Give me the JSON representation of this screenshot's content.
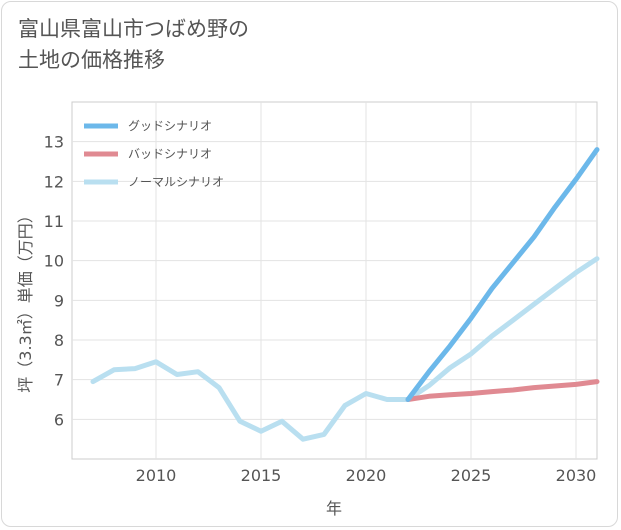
{
  "title_lines": [
    "富山県富山市つばめ野の",
    "土地の価格推移"
  ],
  "chart_data": {
    "type": "line",
    "xlabel": "年",
    "ylabel": "坪（3.3㎡）単価（万円）",
    "xlim": [
      2006,
      2031
    ],
    "ylim": [
      5,
      14
    ],
    "x_ticks": [
      2010,
      2015,
      2020,
      2025,
      2030
    ],
    "y_ticks": [
      6,
      7,
      8,
      9,
      10,
      11,
      12,
      13
    ],
    "grid": true,
    "legend_position": "top-left",
    "series": [
      {
        "name": "グッドシナリオ",
        "color": "#6cb8ea",
        "x": [
          2022,
          2023,
          2024,
          2025,
          2026,
          2027,
          2028,
          2029,
          2030,
          2031
        ],
        "y": [
          6.5,
          7.2,
          7.85,
          8.55,
          9.3,
          9.95,
          10.6,
          11.35,
          12.05,
          12.8
        ]
      },
      {
        "name": "バッドシナリオ",
        "color": "#e08a92",
        "x": [
          2022,
          2023,
          2024,
          2025,
          2026,
          2027,
          2028,
          2029,
          2030,
          2031
        ],
        "y": [
          6.5,
          6.58,
          6.62,
          6.65,
          6.7,
          6.74,
          6.8,
          6.84,
          6.88,
          6.95
        ]
      },
      {
        "name": "ノーマルシナリオ",
        "color": "#b9dff0",
        "x": [
          2007,
          2008,
          2009,
          2010,
          2011,
          2012,
          2013,
          2014,
          2015,
          2016,
          2017,
          2018,
          2019,
          2020,
          2021,
          2022,
          2023,
          2024,
          2025,
          2026,
          2027,
          2028,
          2029,
          2030,
          2031
        ],
        "y": [
          6.95,
          7.25,
          7.28,
          7.45,
          7.13,
          7.2,
          6.8,
          5.95,
          5.7,
          5.95,
          5.5,
          5.62,
          6.35,
          6.65,
          6.5,
          6.5,
          6.85,
          7.3,
          7.65,
          8.1,
          8.5,
          8.9,
          9.3,
          9.7,
          10.05
        ]
      }
    ]
  }
}
